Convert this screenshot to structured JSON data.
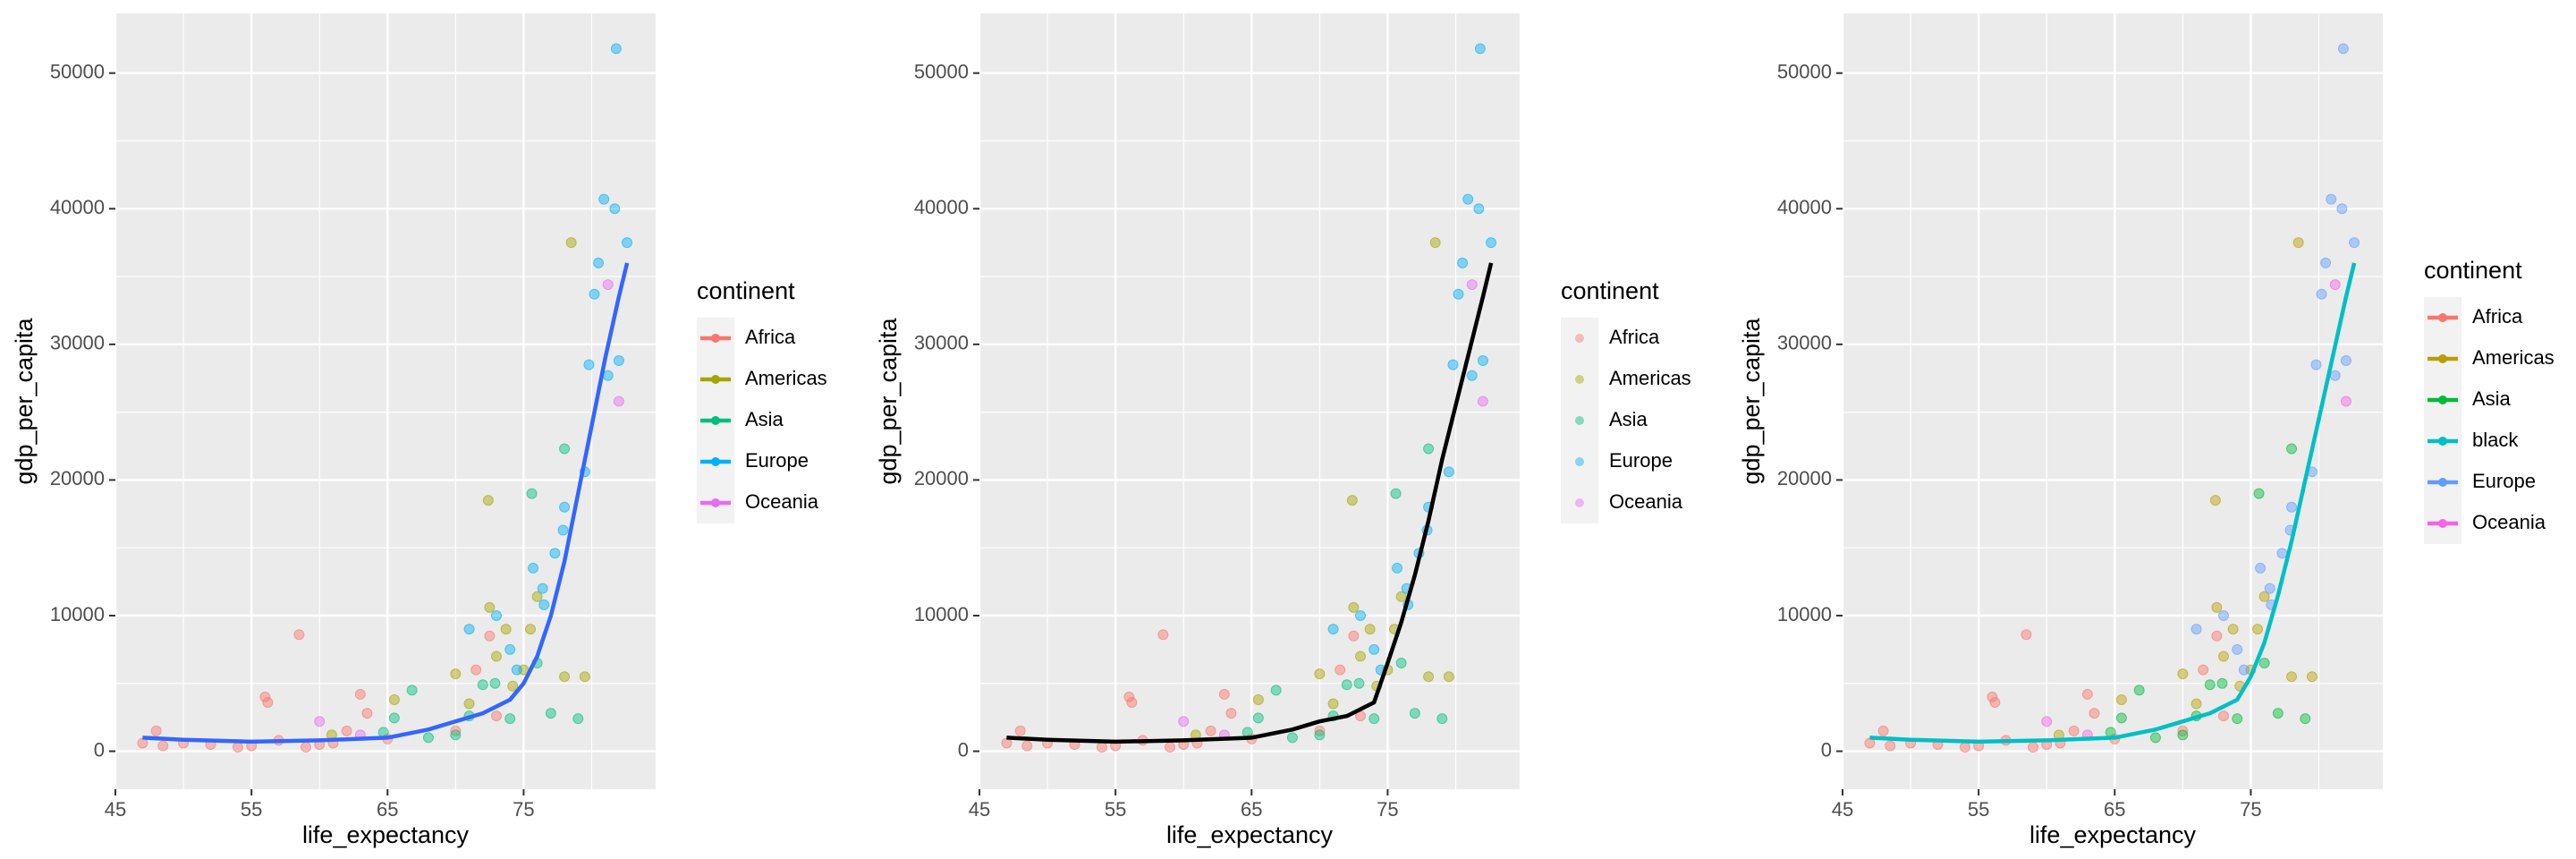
{
  "chart_data": [
    {
      "type": "scatter",
      "xlabel": "life_expectancy",
      "ylabel": "gdp_per_capita",
      "legend_title": "continent",
      "legend_key": "line",
      "xlim": [
        45,
        84.7
      ],
      "ylim": [
        -2800,
        54400
      ],
      "xticks": [
        45,
        55,
        65,
        75
      ],
      "yticks": [
        0,
        10000,
        20000,
        30000,
        40000,
        50000
      ],
      "xminorticks": [
        50,
        60,
        70,
        80
      ],
      "yminorticks": [
        5000,
        15000,
        25000,
        35000,
        45000
      ],
      "grid": true,
      "series": [
        {
          "name": "Africa",
          "color": "#F8766D",
          "geom": "point",
          "x": [
            47,
            48,
            48.5,
            50,
            52,
            54,
            55,
            56,
            56.2,
            57,
            58.5,
            59,
            60,
            61,
            62,
            63,
            63.5,
            65,
            70,
            71.5,
            72.5,
            73
          ],
          "values": [
            600,
            1500,
            400,
            600,
            500,
            300,
            400,
            4000,
            3600,
            800,
            8600,
            300,
            500,
            600,
            1500,
            4200,
            2800,
            900,
            1500,
            6000,
            8500,
            2600
          ]
        },
        {
          "name": "Americas",
          "color": "#A3A500",
          "geom": "point",
          "x": [
            60.9,
            65.5,
            70,
            71,
            72.4,
            72.5,
            73,
            73.7,
            74.2,
            75,
            75.5,
            76,
            78,
            78.5,
            79.5
          ],
          "values": [
            1200,
            3800,
            5700,
            3500,
            18500,
            10600,
            7000,
            9000,
            4800,
            6000,
            9000,
            11400,
            5500,
            37500,
            5500
          ]
        },
        {
          "name": "Asia",
          "color": "#00BF7D",
          "geom": "point",
          "x": [
            64.7,
            65.5,
            66.8,
            68,
            70,
            71,
            72,
            72.9,
            74,
            75.6,
            76,
            77,
            78,
            79
          ],
          "values": [
            1400,
            2450,
            4500,
            1000,
            1200,
            2600,
            4900,
            5000,
            2400,
            19000,
            6500,
            2800,
            22300,
            2400
          ]
        },
        {
          "name": "Europe",
          "color": "#00B0F6",
          "geom": "point",
          "x": [
            71,
            73,
            74,
            74.5,
            75.7,
            76.4,
            77.3,
            78,
            79.5,
            79.8,
            80.2,
            80.5,
            80.9,
            81.2,
            81.7,
            82,
            81.8,
            82.6,
            76.5,
            77.9
          ],
          "values": [
            9000,
            10000,
            7500,
            6000,
            13500,
            12000,
            14600,
            18000,
            20600,
            28500,
            33700,
            36000,
            40700,
            27700,
            40000,
            28800,
            51800,
            37500,
            10800,
            16300
          ]
        },
        {
          "name": "Oceania",
          "color": "#E76BF3",
          "geom": "point",
          "x": [
            60,
            63,
            82,
            81.2
          ],
          "values": [
            2200,
            1200,
            25800,
            34400
          ]
        },
        {
          "color": "#3366FF",
          "geom": "smooth",
          "x": [
            47,
            50,
            55,
            60,
            65,
            68,
            70,
            72,
            74,
            75,
            76,
            77,
            78,
            79,
            80,
            81,
            82,
            82.6
          ],
          "values": [
            1000,
            850,
            700,
            800,
            1000,
            1600,
            2200,
            2800,
            3800,
            5000,
            7000,
            10000,
            14000,
            19000,
            24000,
            29000,
            33500,
            36000
          ]
        }
      ]
    },
    {
      "type": "scatter",
      "xlabel": "life_expectancy",
      "ylabel": "gdp_per_capita",
      "legend_title": "continent",
      "legend_key": "point",
      "xlim": [
        45,
        84.7
      ],
      "ylim": [
        -2800,
        54400
      ],
      "xticks": [
        45,
        55,
        65,
        75
      ],
      "yticks": [
        0,
        10000,
        20000,
        30000,
        40000,
        50000
      ],
      "xminorticks": [
        50,
        60,
        70,
        80
      ],
      "yminorticks": [
        5000,
        15000,
        25000,
        35000,
        45000
      ],
      "grid": true,
      "series": [
        {
          "name": "Africa",
          "color": "#F8766D",
          "geom": "point",
          "x": [
            47,
            48,
            48.5,
            50,
            52,
            54,
            55,
            56,
            56.2,
            57,
            58.5,
            59,
            60,
            61,
            62,
            63,
            63.5,
            65,
            70,
            71.5,
            72.5,
            73
          ],
          "values": [
            600,
            1500,
            400,
            600,
            500,
            300,
            400,
            4000,
            3600,
            800,
            8600,
            300,
            500,
            600,
            1500,
            4200,
            2800,
            900,
            1500,
            6000,
            8500,
            2600
          ]
        },
        {
          "name": "Americas",
          "color": "#A3A500",
          "geom": "point",
          "x": [
            60.9,
            65.5,
            70,
            71,
            72.4,
            72.5,
            73,
            73.7,
            74.2,
            75,
            75.5,
            76,
            78,
            78.5,
            79.5
          ],
          "values": [
            1200,
            3800,
            5700,
            3500,
            18500,
            10600,
            7000,
            9000,
            4800,
            6000,
            9000,
            11400,
            5500,
            37500,
            5500
          ]
        },
        {
          "name": "Asia",
          "color": "#00BF7D",
          "geom": "point",
          "x": [
            64.7,
            65.5,
            66.8,
            68,
            70,
            71,
            72,
            72.9,
            74,
            75.6,
            76,
            77,
            78,
            79
          ],
          "values": [
            1400,
            2450,
            4500,
            1000,
            1200,
            2600,
            4900,
            5000,
            2400,
            19000,
            6500,
            2800,
            22300,
            2400
          ]
        },
        {
          "name": "Europe",
          "color": "#00B0F6",
          "geom": "point",
          "x": [
            71,
            73,
            74,
            74.5,
            75.7,
            76.4,
            77.3,
            78,
            79.5,
            79.8,
            80.2,
            80.5,
            80.9,
            81.2,
            81.7,
            82,
            81.8,
            82.6,
            76.5,
            77.9
          ],
          "values": [
            9000,
            10000,
            7500,
            6000,
            13500,
            12000,
            14600,
            18000,
            20600,
            28500,
            33700,
            36000,
            40700,
            27700,
            40000,
            28800,
            51800,
            37500,
            10800,
            16300
          ]
        },
        {
          "name": "Oceania",
          "color": "#E76BF3",
          "geom": "point",
          "x": [
            60,
            63,
            82,
            81.2
          ],
          "values": [
            2200,
            1200,
            25800,
            34400
          ]
        },
        {
          "color": "#000000",
          "geom": "smooth",
          "x": [
            47,
            50,
            55,
            60,
            65,
            68,
            70,
            71,
            72,
            74,
            75,
            76,
            77,
            78,
            79,
            80,
            81,
            82,
            82.6
          ],
          "values": [
            1000,
            850,
            700,
            800,
            1000,
            1600,
            2200,
            2400,
            2600,
            3600,
            6500,
            9500,
            13000,
            17000,
            21500,
            25500,
            29500,
            33500,
            36000
          ]
        }
      ]
    },
    {
      "type": "scatter",
      "xlabel": "life_expectancy",
      "ylabel": "gdp_per_capita",
      "legend_title": "continent",
      "legend_key": "line",
      "xlim": [
        45,
        84.7
      ],
      "ylim": [
        -2800,
        54400
      ],
      "xticks": [
        45,
        55,
        65,
        75
      ],
      "yticks": [
        0,
        10000,
        20000,
        30000,
        40000,
        50000
      ],
      "xminorticks": [
        50,
        60,
        70,
        80
      ],
      "yminorticks": [
        5000,
        15000,
        25000,
        35000,
        45000
      ],
      "grid": true,
      "series": [
        {
          "name": "Africa",
          "color": "#F8766D",
          "geom": "point",
          "x": [
            47,
            48,
            48.5,
            50,
            52,
            54,
            55,
            56,
            56.2,
            57,
            58.5,
            59,
            60,
            61,
            62,
            63,
            63.5,
            65,
            70,
            71.5,
            72.5,
            73
          ],
          "values": [
            600,
            1500,
            400,
            600,
            500,
            300,
            400,
            4000,
            3600,
            800,
            8600,
            300,
            500,
            600,
            1500,
            4200,
            2800,
            900,
            1500,
            6000,
            8500,
            2600
          ]
        },
        {
          "name": "Americas",
          "color": "#B79F00",
          "geom": "point",
          "x": [
            60.9,
            65.5,
            70,
            71,
            72.4,
            72.5,
            73,
            73.7,
            74.2,
            75,
            75.5,
            76,
            78,
            78.5,
            79.5
          ],
          "values": [
            1200,
            3800,
            5700,
            3500,
            18500,
            10600,
            7000,
            9000,
            4800,
            6000,
            9000,
            11400,
            5500,
            37500,
            5500
          ]
        },
        {
          "name": "Asia",
          "color": "#00BA38",
          "geom": "point",
          "x": [
            64.7,
            65.5,
            66.8,
            68,
            70,
            71,
            72,
            72.9,
            74,
            75.6,
            76,
            77,
            78,
            79
          ],
          "values": [
            1400,
            2450,
            4500,
            1000,
            1200,
            2600,
            4900,
            5000,
            2400,
            19000,
            6500,
            2800,
            22300,
            2400
          ]
        },
        {
          "name": "black",
          "color": "#00BFC4",
          "geom": "smooth",
          "x": [
            47,
            50,
            55,
            60,
            65,
            68,
            70,
            72,
            74,
            75,
            76,
            77,
            78,
            79,
            80,
            81,
            82,
            82.6
          ],
          "values": [
            1000,
            850,
            700,
            800,
            1000,
            1600,
            2200,
            2800,
            3800,
            5500,
            8000,
            11500,
            15500,
            20000,
            24500,
            29000,
            33500,
            36000
          ]
        },
        {
          "name": "Europe",
          "color": "#619CFF",
          "geom": "point",
          "x": [
            71,
            73,
            74,
            74.5,
            75.7,
            76.4,
            77.3,
            78,
            79.5,
            79.8,
            80.2,
            80.5,
            80.9,
            81.2,
            81.7,
            82,
            81.8,
            82.6,
            76.5,
            77.9
          ],
          "values": [
            9000,
            10000,
            7500,
            6000,
            13500,
            12000,
            14600,
            18000,
            20600,
            28500,
            33700,
            36000,
            40700,
            27700,
            40000,
            28800,
            51800,
            37500,
            10800,
            16300
          ]
        },
        {
          "name": "Oceania",
          "color": "#F564E3",
          "geom": "point",
          "x": [
            60,
            63,
            82,
            81.2
          ],
          "values": [
            2200,
            1200,
            25800,
            34400
          ]
        }
      ]
    }
  ]
}
